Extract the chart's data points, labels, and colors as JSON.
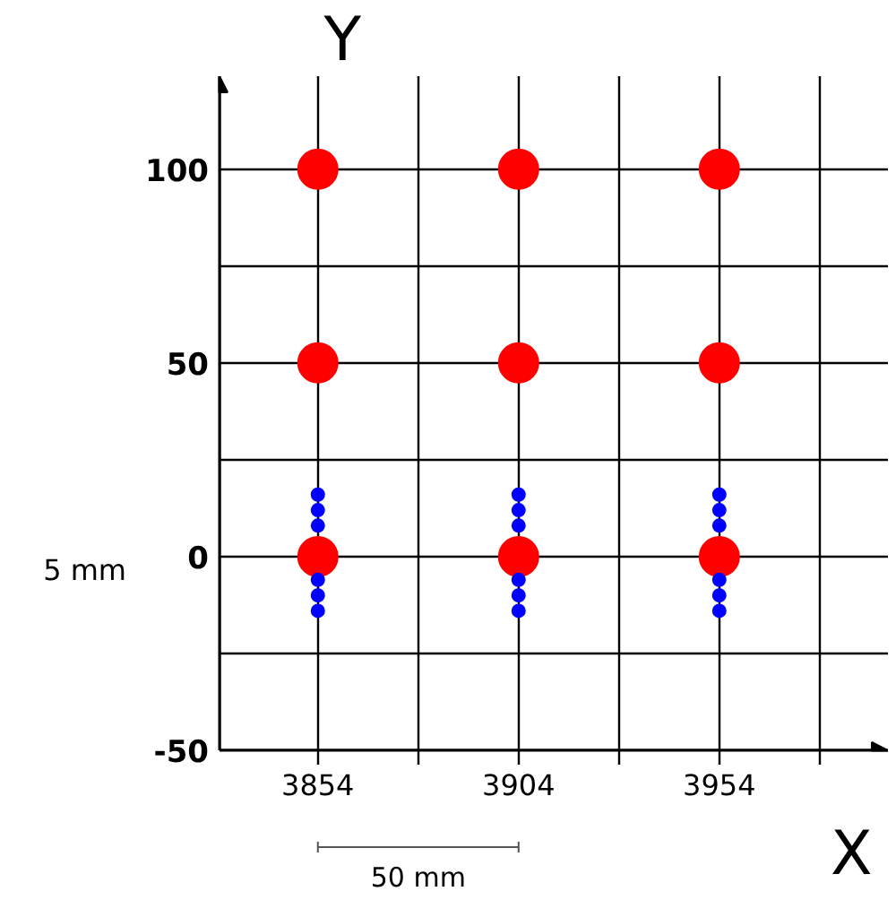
{
  "chart_data": {
    "type": "scatter",
    "xlabel": "X",
    "ylabel": "Y",
    "xlim": [
      3829.5,
      3996
    ],
    "ylim": [
      -50,
      124
    ],
    "xticks": [
      3854,
      {
        "value": 3879,
        "label": null
      },
      3904,
      {
        "value": 3929,
        "label": null
      },
      3954,
      {
        "value": 3979,
        "label": null
      }
    ],
    "yticks": [
      -50,
      {
        "value": -25,
        "label": null
      },
      0,
      {
        "value": 25,
        "label": null
      },
      50,
      {
        "value": 75,
        "label": null
      },
      100
    ],
    "grid": true,
    "marker": "circle",
    "series": [
      {
        "color": "#ff0000",
        "x": [
          3854,
          3904,
          3954,
          3854,
          3904,
          3954,
          3854,
          3904,
          3954
        ],
        "values": [
          100,
          100,
          100,
          50,
          50,
          50,
          0,
          0,
          0
        ]
      },
      {
        "color": "#0000ff",
        "x": [
          3854,
          3854,
          3854,
          3854,
          3854,
          3854,
          3904,
          3904,
          3904,
          3904,
          3904,
          3904,
          3954,
          3954,
          3954,
          3954,
          3954,
          3954
        ],
        "values": [
          16,
          12,
          8,
          -6,
          -10,
          -14,
          16,
          12,
          8,
          -6,
          -10,
          -14,
          16,
          12,
          8,
          -6,
          -10,
          -14
        ]
      }
    ],
    "annotations": [
      "5 mm",
      "50 mm"
    ]
  }
}
